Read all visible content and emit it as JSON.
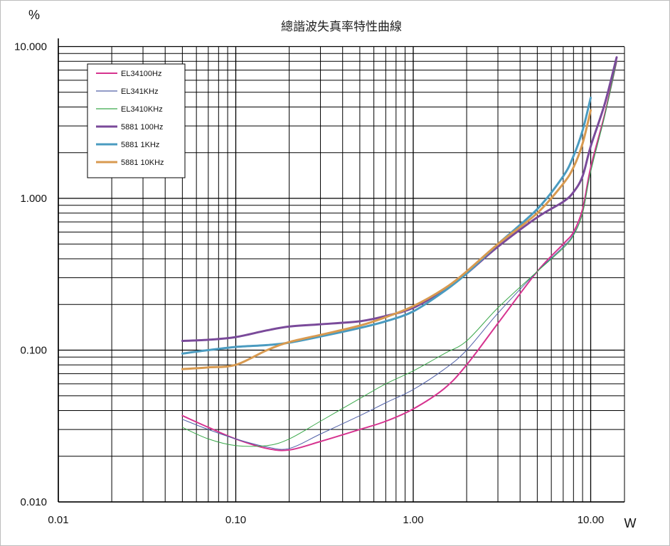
{
  "chart_data": {
    "type": "line",
    "title": "總諧波失真率特性曲線",
    "xlabel": "W",
    "ylabel": "%",
    "x_scale": "log",
    "y_scale": "log",
    "xlim": [
      0.01,
      15
    ],
    "ylim": [
      0.01,
      10
    ],
    "x_ticks": [
      "0.01",
      "0.10",
      "1.00",
      "10.00"
    ],
    "y_ticks": [
      "0.010",
      "0.100",
      "1.000",
      "10.000"
    ],
    "grid": true,
    "legend_position": "top-left",
    "series": [
      {
        "name": "EL34100Hz",
        "color": "#d6338f",
        "width": 2.0,
        "x": [
          0.05,
          0.07,
          0.1,
          0.15,
          0.2,
          0.3,
          0.5,
          0.7,
          1.0,
          1.5,
          2.0,
          3.0,
          5.0,
          7.0,
          8.0,
          9.0,
          10.0,
          12.0,
          14.0
        ],
        "y": [
          0.037,
          0.031,
          0.026,
          0.0225,
          0.022,
          0.025,
          0.03,
          0.034,
          0.041,
          0.056,
          0.08,
          0.15,
          0.33,
          0.5,
          0.6,
          0.85,
          1.6,
          3.6,
          8.0
        ]
      },
      {
        "name": "EL341KHz",
        "color": "#5060a8",
        "width": 1.0,
        "x": [
          0.05,
          0.07,
          0.1,
          0.15,
          0.2,
          0.3,
          0.5,
          0.7,
          1.0,
          1.5,
          2.0,
          3.0,
          5.0,
          7.0,
          8.0,
          9.0,
          10.0,
          12.0,
          14.0
        ],
        "y": [
          0.035,
          0.03,
          0.026,
          0.023,
          0.0225,
          0.028,
          0.037,
          0.045,
          0.055,
          0.075,
          0.1,
          0.175,
          0.33,
          0.48,
          0.58,
          0.8,
          1.5,
          3.5,
          8.0
        ]
      },
      {
        "name": "EL3410KHz",
        "color": "#3aa84a",
        "width": 1.0,
        "x": [
          0.05,
          0.07,
          0.1,
          0.15,
          0.2,
          0.3,
          0.5,
          0.7,
          1.0,
          1.5,
          2.0,
          3.0,
          5.0,
          7.0,
          8.0,
          9.0,
          10.0,
          12.0,
          14.0
        ],
        "y": [
          0.031,
          0.026,
          0.0235,
          0.0235,
          0.026,
          0.034,
          0.048,
          0.06,
          0.073,
          0.095,
          0.115,
          0.19,
          0.33,
          0.47,
          0.57,
          0.8,
          1.5,
          3.5,
          8.0
        ]
      },
      {
        "name": "5881 100Hz",
        "color": "#7a4a9a",
        "width": 3.0,
        "x": [
          0.05,
          0.07,
          0.1,
          0.15,
          0.2,
          0.3,
          0.5,
          0.7,
          1.0,
          1.5,
          2.0,
          3.0,
          5.0,
          7.0,
          8.0,
          9.0,
          10.0,
          12.0,
          14.0
        ],
        "y": [
          0.115,
          0.117,
          0.122,
          0.135,
          0.143,
          0.148,
          0.155,
          0.168,
          0.19,
          0.25,
          0.32,
          0.48,
          0.75,
          0.95,
          1.1,
          1.4,
          2.2,
          4.2,
          8.5
        ]
      },
      {
        "name": "5881 1KHz",
        "color": "#4a9bc0",
        "width": 3.0,
        "x": [
          0.05,
          0.07,
          0.1,
          0.15,
          0.2,
          0.3,
          0.5,
          0.7,
          1.0,
          1.5,
          2.0,
          3.0,
          5.0,
          7.0,
          8.0,
          9.0,
          10.0
        ],
        "y": [
          0.095,
          0.1,
          0.105,
          0.108,
          0.112,
          0.123,
          0.14,
          0.155,
          0.18,
          0.245,
          0.32,
          0.5,
          0.85,
          1.4,
          1.9,
          2.8,
          4.6
        ]
      },
      {
        "name": "5881 10KHz",
        "color": "#d89a50",
        "width": 3.0,
        "x": [
          0.05,
          0.07,
          0.1,
          0.15,
          0.2,
          0.3,
          0.5,
          0.7,
          1.0,
          1.5,
          2.0,
          3.0,
          5.0,
          7.0,
          8.0,
          9.0,
          10.0
        ],
        "y": [
          0.075,
          0.077,
          0.08,
          0.1,
          0.113,
          0.126,
          0.145,
          0.165,
          0.195,
          0.255,
          0.33,
          0.5,
          0.8,
          1.25,
          1.6,
          2.3,
          3.8
        ]
      }
    ]
  }
}
